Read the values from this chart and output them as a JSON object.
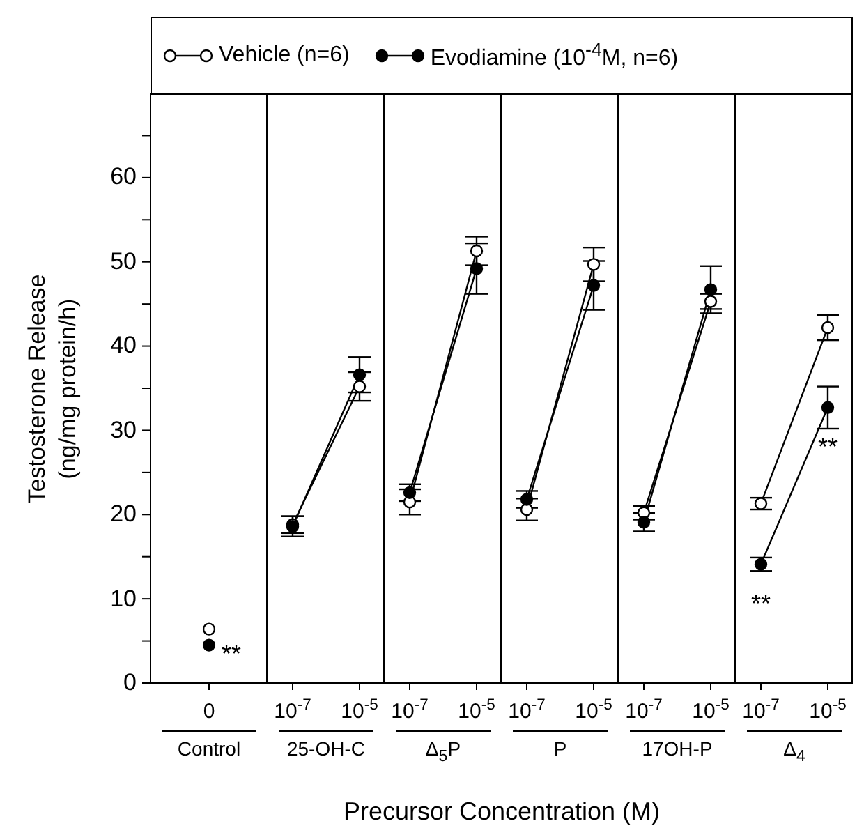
{
  "chart_data": [
    {
      "type": "line",
      "ylabel": "Testosterone Release\n(ng/mg protein/h)",
      "xlabel": "Control",
      "categories": [
        "0"
      ],
      "ylim": [
        0,
        70
      ],
      "yticks": [
        0,
        {
          "value": 5,
          "label": null
        },
        10,
        {
          "value": 15,
          "label": null
        },
        20,
        {
          "value": 25,
          "label": null
        },
        30,
        {
          "value": 35,
          "label": null
        },
        40,
        {
          "value": 45,
          "label": null
        },
        50,
        {
          "value": 55,
          "label": null
        },
        60,
        {
          "value": 65,
          "label": null
        }
      ],
      "marker": "circle",
      "legend": "top",
      "series": [
        {
          "name": "Vehicle (n=6)",
          "color": "#ffffff",
          "values": [
            6.4
          ]
        },
        {
          "name": "Evodiamine (10$^{-4}$M, n=6)",
          "color": "#000000",
          "values": [
            4.5
          ]
        }
      ],
      "annotations": [
        {
          "text": "**",
          "x": "0",
          "y": 4.5
        },
        "Precursor Concentration (M)"
      ]
    },
    {
      "type": "line",
      "xlabel": "25-OH-C",
      "categories": [
        "10$^{-7}$",
        "10$^{-5}$"
      ],
      "ylim": [
        0,
        70
      ],
      "tick_labels": "x",
      "marker": "circle",
      "series": [
        {
          "color": "#ffffff",
          "values": [
            18.8,
            35.2
          ],
          "errors": [
            1.0,
            1.7
          ]
        },
        {
          "color": "#000000",
          "values": [
            18.6,
            36.6
          ],
          "errors": [
            1.2,
            2.1
          ]
        }
      ]
    },
    {
      "type": "line",
      "xlabel": "Δ$_{5}$P",
      "categories": [
        "10$^{-7}$",
        "10$^{-5}$"
      ],
      "ylim": [
        0,
        70
      ],
      "tick_labels": "x",
      "marker": "circle",
      "series": [
        {
          "color": "#ffffff",
          "values": [
            21.5,
            51.3
          ],
          "errors": [
            1.5,
            1.7
          ]
        },
        {
          "color": "#000000",
          "values": [
            22.6,
            49.2
          ],
          "errors": [
            1.0,
            3.0
          ]
        }
      ]
    },
    {
      "type": "line",
      "xlabel": "P",
      "categories": [
        "10$^{-7}$",
        "10$^{-5}$"
      ],
      "ylim": [
        0,
        70
      ],
      "tick_labels": "x",
      "marker": "circle",
      "series": [
        {
          "color": "#ffffff",
          "values": [
            20.6,
            49.7
          ],
          "errors": [
            1.3,
            2.0
          ]
        },
        {
          "color": "#000000",
          "values": [
            21.8,
            47.2
          ],
          "errors": [
            1.0,
            2.9
          ]
        }
      ]
    },
    {
      "type": "line",
      "xlabel": "17OH-P",
      "categories": [
        "10$^{-7}$",
        "10$^{-5}$"
      ],
      "ylim": [
        0,
        70
      ],
      "tick_labels": "x",
      "marker": "circle",
      "series": [
        {
          "color": "#ffffff",
          "values": [
            20.2,
            45.3
          ],
          "errors": [
            0.8,
            0.9
          ]
        },
        {
          "color": "#000000",
          "values": [
            19.1,
            46.7
          ],
          "errors": [
            1.1,
            2.8
          ]
        }
      ]
    },
    {
      "type": "line",
      "xlabel": "Δ$_{4}$",
      "categories": [
        "10$^{-7}$",
        "10$^{-5}$"
      ],
      "ylim": [
        0,
        70
      ],
      "tick_labels": "x",
      "marker": "circle",
      "series": [
        {
          "color": "#ffffff",
          "values": [
            21.3,
            42.2
          ],
          "errors": [
            0.7,
            1.5
          ]
        },
        {
          "color": "#000000",
          "values": [
            14.1,
            32.7
          ],
          "errors": [
            0.8,
            2.5
          ]
        }
      ],
      "annotations": [
        {
          "text": "**",
          "x": "10$^{-7}$",
          "y": 14.1
        },
        {
          "text": "**",
          "x": "10$^{-5}$",
          "y": 32.7
        }
      ]
    }
  ]
}
